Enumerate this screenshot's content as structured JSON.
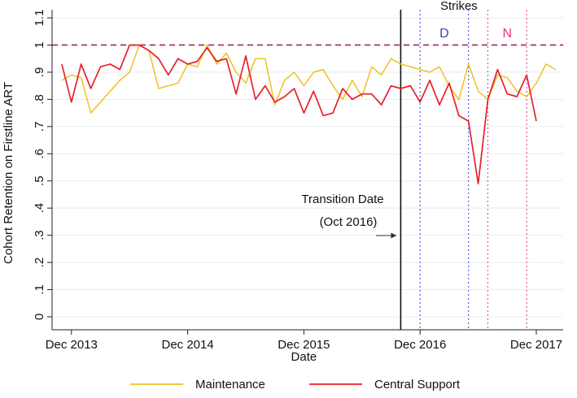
{
  "chart_data": {
    "type": "line",
    "title": "",
    "xlabel": "Date",
    "ylabel": "Cohort Retention on Firstline ART",
    "ylim": [
      0,
      1.1
    ],
    "yticks": [
      {
        "value": 0,
        "label": "0"
      },
      {
        "value": 0.1,
        "label": ".1"
      },
      {
        "value": 0.2,
        "label": ".2"
      },
      {
        "value": 0.3,
        "label": ".3"
      },
      {
        "value": 0.4,
        "label": ".4"
      },
      {
        "value": 0.5,
        "label": ".5"
      },
      {
        "value": 0.6,
        "label": ".6"
      },
      {
        "value": 0.7,
        "label": ".7"
      },
      {
        "value": 0.8,
        "label": ".8"
      },
      {
        "value": 0.9,
        "label": ".9"
      },
      {
        "value": 1.0,
        "label": "1"
      },
      {
        "value": 1.1,
        "label": "1.1"
      }
    ],
    "xlim": [
      "2013-10",
      "2017-12"
    ],
    "xticks": [
      {
        "value": "2013-12",
        "label": "Dec 2013"
      },
      {
        "value": "2014-12",
        "label": "Dec 2014"
      },
      {
        "value": "2015-12",
        "label": "Dec 2015"
      },
      {
        "value": "2016-12",
        "label": "Dec 2016"
      },
      {
        "value": "2017-12",
        "label": "Dec 2017"
      }
    ],
    "grid": "horizontal",
    "legend_position": "bottom",
    "reference_line": {
      "y": 1.0,
      "color": "#a0245c",
      "style": "dashed"
    },
    "transition": {
      "x": "2016-10",
      "label_line1": "Transition Date",
      "label_line2": "(Oct 2016)"
    },
    "strikes": {
      "title": "Strikes",
      "periods": [
        {
          "label": "D",
          "start": "2016-12",
          "end": "2017-05",
          "color": "#3344cc"
        },
        {
          "label": "N",
          "start": "2017-07",
          "end": "2017-11",
          "color": "#e8338a"
        }
      ]
    },
    "series": [
      {
        "name": "Maintenance",
        "color": "#f0c020",
        "points": [
          [
            "2013-11",
            0.87
          ],
          [
            "2013-12",
            0.89
          ],
          [
            "2014-01",
            0.88
          ],
          [
            "2014-02",
            0.75
          ],
          [
            "2014-03",
            0.79
          ],
          [
            "2014-04",
            0.83
          ],
          [
            "2014-05",
            0.87
          ],
          [
            "2014-06",
            0.9
          ],
          [
            "2014-07",
            1.0
          ],
          [
            "2014-08",
            0.98
          ],
          [
            "2014-09",
            0.84
          ],
          [
            "2014-10",
            0.85
          ],
          [
            "2014-11",
            0.86
          ],
          [
            "2014-12",
            0.93
          ],
          [
            "2015-01",
            0.92
          ],
          [
            "2015-02",
            1.0
          ],
          [
            "2015-03",
            0.93
          ],
          [
            "2015-04",
            0.97
          ],
          [
            "2015-05",
            0.9
          ],
          [
            "2015-06",
            0.86
          ],
          [
            "2015-07",
            0.95
          ],
          [
            "2015-08",
            0.95
          ],
          [
            "2015-09",
            0.78
          ],
          [
            "2015-10",
            0.87
          ],
          [
            "2015-11",
            0.9
          ],
          [
            "2015-12",
            0.85
          ],
          [
            "2016-01",
            0.9
          ],
          [
            "2016-02",
            0.91
          ],
          [
            "2016-03",
            0.85
          ],
          [
            "2016-04",
            0.8
          ],
          [
            "2016-05",
            0.87
          ],
          [
            "2016-06",
            0.81
          ],
          [
            "2016-07",
            0.92
          ],
          [
            "2016-08",
            0.89
          ],
          [
            "2016-09",
            0.95
          ],
          [
            "2016-10",
            0.93
          ],
          [
            "2016-11",
            0.92
          ],
          [
            "2016-12",
            0.91
          ],
          [
            "2017-01",
            0.9
          ],
          [
            "2017-02",
            0.92
          ],
          [
            "2017-03",
            0.85
          ],
          [
            "2017-04",
            0.8
          ],
          [
            "2017-05",
            0.93
          ],
          [
            "2017-06",
            0.83
          ],
          [
            "2017-07",
            0.8
          ],
          [
            "2017-08",
            0.89
          ],
          [
            "2017-09",
            0.88
          ],
          [
            "2017-10",
            0.83
          ],
          [
            "2017-11",
            0.81
          ],
          [
            "2017-12",
            0.86
          ],
          [
            "2018-01",
            0.93
          ],
          [
            "2018-02",
            0.91
          ]
        ]
      },
      {
        "name": "Central Support",
        "color": "#e8202a",
        "points": [
          [
            "2013-11",
            0.93
          ],
          [
            "2013-12",
            0.79
          ],
          [
            "2014-01",
            0.93
          ],
          [
            "2014-02",
            0.84
          ],
          [
            "2014-03",
            0.92
          ],
          [
            "2014-04",
            0.93
          ],
          [
            "2014-05",
            0.91
          ],
          [
            "2014-06",
            1.0
          ],
          [
            "2014-07",
            1.0
          ],
          [
            "2014-08",
            0.98
          ],
          [
            "2014-09",
            0.95
          ],
          [
            "2014-10",
            0.89
          ],
          [
            "2014-11",
            0.95
          ],
          [
            "2014-12",
            0.93
          ],
          [
            "2015-01",
            0.94
          ],
          [
            "2015-02",
            0.99
          ],
          [
            "2015-03",
            0.94
          ],
          [
            "2015-04",
            0.95
          ],
          [
            "2015-05",
            0.82
          ],
          [
            "2015-06",
            0.96
          ],
          [
            "2015-07",
            0.8
          ],
          [
            "2015-08",
            0.85
          ],
          [
            "2015-09",
            0.79
          ],
          [
            "2015-10",
            0.81
          ],
          [
            "2015-11",
            0.84
          ],
          [
            "2015-12",
            0.75
          ],
          [
            "2016-01",
            0.83
          ],
          [
            "2016-02",
            0.74
          ],
          [
            "2016-03",
            0.75
          ],
          [
            "2016-04",
            0.84
          ],
          [
            "2016-05",
            0.8
          ],
          [
            "2016-06",
            0.82
          ],
          [
            "2016-07",
            0.82
          ],
          [
            "2016-08",
            0.78
          ],
          [
            "2016-09",
            0.85
          ],
          [
            "2016-10",
            0.84
          ],
          [
            "2016-11",
            0.85
          ],
          [
            "2016-12",
            0.79
          ],
          [
            "2017-01",
            0.87
          ],
          [
            "2017-02",
            0.78
          ],
          [
            "2017-03",
            0.86
          ],
          [
            "2017-04",
            0.74
          ],
          [
            "2017-05",
            0.72
          ],
          [
            "2017-06",
            0.49
          ],
          [
            "2017-07",
            0.8
          ],
          [
            "2017-08",
            0.91
          ],
          [
            "2017-09",
            0.82
          ],
          [
            "2017-10",
            0.81
          ],
          [
            "2017-11",
            0.89
          ],
          [
            "2017-12",
            0.72
          ]
        ]
      }
    ]
  }
}
